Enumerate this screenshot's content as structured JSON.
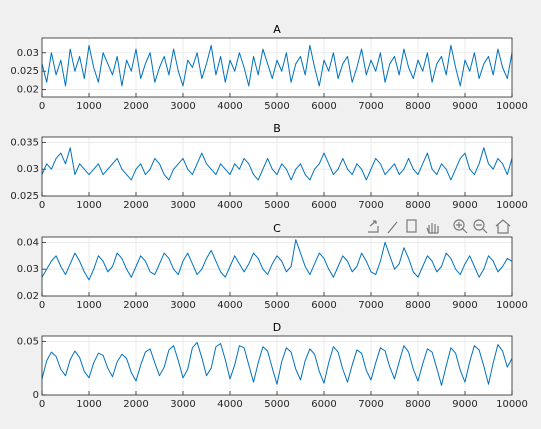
{
  "chart_data": [
    {
      "type": "line",
      "title": "A",
      "color": "#0072bd",
      "grid": true,
      "xlim": [
        0,
        10000
      ],
      "xticks": [
        0,
        1000,
        2000,
        3000,
        4000,
        5000,
        6000,
        7000,
        8000,
        9000,
        10000
      ],
      "ylim": [
        0.018,
        0.034
      ],
      "yticks": [
        0.02,
        0.025,
        0.03
      ],
      "x": [
        0,
        100,
        200,
        300,
        400,
        500,
        600,
        700,
        800,
        900,
        1000,
        1100,
        1200,
        1300,
        1400,
        1500,
        1600,
        1700,
        1800,
        1900,
        2000,
        2100,
        2200,
        2300,
        2400,
        2500,
        2600,
        2700,
        2800,
        2900,
        3000,
        3100,
        3200,
        3300,
        3400,
        3500,
        3600,
        3700,
        3800,
        3900,
        4000,
        4100,
        4200,
        4300,
        4400,
        4500,
        4600,
        4700,
        4800,
        4900,
        5000,
        5100,
        5200,
        5300,
        5400,
        5500,
        5600,
        5700,
        5800,
        5900,
        6000,
        6100,
        6200,
        6300,
        6400,
        6500,
        6600,
        6700,
        6800,
        6900,
        7000,
        7100,
        7200,
        7300,
        7400,
        7500,
        7600,
        7700,
        7800,
        7900,
        8000,
        8100,
        8200,
        8300,
        8400,
        8500,
        8600,
        8700,
        8800,
        8900,
        9000,
        9100,
        9200,
        9300,
        9400,
        9500,
        9600,
        9700,
        9800,
        9900,
        10000
      ],
      "values": [
        0.027,
        0.022,
        0.03,
        0.024,
        0.028,
        0.021,
        0.031,
        0.025,
        0.029,
        0.023,
        0.032,
        0.026,
        0.022,
        0.03,
        0.027,
        0.024,
        0.029,
        0.021,
        0.028,
        0.025,
        0.031,
        0.023,
        0.027,
        0.03,
        0.022,
        0.026,
        0.029,
        0.024,
        0.031,
        0.025,
        0.021,
        0.028,
        0.026,
        0.03,
        0.023,
        0.027,
        0.032,
        0.024,
        0.029,
        0.022,
        0.028,
        0.025,
        0.03,
        0.026,
        0.021,
        0.029,
        0.024,
        0.031,
        0.027,
        0.023,
        0.028,
        0.025,
        0.03,
        0.022,
        0.027,
        0.029,
        0.024,
        0.032,
        0.026,
        0.021,
        0.028,
        0.025,
        0.03,
        0.023,
        0.027,
        0.029,
        0.022,
        0.026,
        0.031,
        0.024,
        0.028,
        0.025,
        0.03,
        0.022,
        0.027,
        0.029,
        0.024,
        0.031,
        0.026,
        0.023,
        0.028,
        0.025,
        0.03,
        0.022,
        0.027,
        0.029,
        0.024,
        0.032,
        0.026,
        0.021,
        0.028,
        0.025,
        0.03,
        0.023,
        0.027,
        0.029,
        0.024,
        0.031,
        0.026,
        0.023,
        0.03
      ]
    },
    {
      "type": "line",
      "title": "B",
      "color": "#0072bd",
      "grid": true,
      "xlim": [
        0,
        10000
      ],
      "xticks": [
        0,
        1000,
        2000,
        3000,
        4000,
        5000,
        6000,
        7000,
        8000,
        9000,
        10000
      ],
      "ylim": [
        0.025,
        0.036
      ],
      "yticks": [
        0.025,
        0.03,
        0.035
      ],
      "x": [
        0,
        100,
        200,
        300,
        400,
        500,
        600,
        700,
        800,
        900,
        1000,
        1100,
        1200,
        1300,
        1400,
        1500,
        1600,
        1700,
        1800,
        1900,
        2000,
        2100,
        2200,
        2300,
        2400,
        2500,
        2600,
        2700,
        2800,
        2900,
        3000,
        3100,
        3200,
        3300,
        3400,
        3500,
        3600,
        3700,
        3800,
        3900,
        4000,
        4100,
        4200,
        4300,
        4400,
        4500,
        4600,
        4700,
        4800,
        4900,
        5000,
        5100,
        5200,
        5300,
        5400,
        5500,
        5600,
        5700,
        5800,
        5900,
        6000,
        6100,
        6200,
        6300,
        6400,
        6500,
        6600,
        6700,
        6800,
        6900,
        7000,
        7100,
        7200,
        7300,
        7400,
        7500,
        7600,
        7700,
        7800,
        7900,
        8000,
        8100,
        8200,
        8300,
        8400,
        8500,
        8600,
        8700,
        8800,
        8900,
        9000,
        9100,
        9200,
        9300,
        9400,
        9500,
        9600,
        9700,
        9800,
        9900,
        10000
      ],
      "values": [
        0.029,
        0.031,
        0.03,
        0.032,
        0.033,
        0.031,
        0.034,
        0.029,
        0.031,
        0.03,
        0.029,
        0.03,
        0.031,
        0.029,
        0.03,
        0.031,
        0.032,
        0.03,
        0.029,
        0.028,
        0.03,
        0.031,
        0.029,
        0.03,
        0.032,
        0.031,
        0.029,
        0.028,
        0.03,
        0.031,
        0.032,
        0.03,
        0.029,
        0.031,
        0.033,
        0.031,
        0.03,
        0.029,
        0.031,
        0.03,
        0.029,
        0.031,
        0.03,
        0.032,
        0.031,
        0.029,
        0.028,
        0.03,
        0.032,
        0.03,
        0.029,
        0.031,
        0.03,
        0.028,
        0.03,
        0.031,
        0.029,
        0.028,
        0.03,
        0.031,
        0.033,
        0.031,
        0.029,
        0.03,
        0.032,
        0.03,
        0.029,
        0.031,
        0.03,
        0.028,
        0.03,
        0.032,
        0.031,
        0.029,
        0.03,
        0.031,
        0.029,
        0.03,
        0.032,
        0.03,
        0.029,
        0.031,
        0.033,
        0.03,
        0.029,
        0.031,
        0.03,
        0.028,
        0.03,
        0.032,
        0.033,
        0.03,
        0.029,
        0.031,
        0.034,
        0.031,
        0.03,
        0.032,
        0.031,
        0.029,
        0.032
      ]
    },
    {
      "type": "line",
      "title": "C",
      "color": "#0072bd",
      "grid": true,
      "xlim": [
        0,
        10000
      ],
      "xticks": [
        0,
        1000,
        2000,
        3000,
        4000,
        5000,
        6000,
        7000,
        8000,
        9000,
        10000
      ],
      "ylim": [
        0.02,
        0.042
      ],
      "yticks": [
        0.02,
        0.03,
        0.04
      ],
      "x": [
        0,
        100,
        200,
        300,
        400,
        500,
        600,
        700,
        800,
        900,
        1000,
        1100,
        1200,
        1300,
        1400,
        1500,
        1600,
        1700,
        1800,
        1900,
        2000,
        2100,
        2200,
        2300,
        2400,
        2500,
        2600,
        2700,
        2800,
        2900,
        3000,
        3100,
        3200,
        3300,
        3400,
        3500,
        3600,
        3700,
        3800,
        3900,
        4000,
        4100,
        4200,
        4300,
        4400,
        4500,
        4600,
        4700,
        4800,
        4900,
        5000,
        5100,
        5200,
        5300,
        5400,
        5500,
        5600,
        5700,
        5800,
        5900,
        6000,
        6100,
        6200,
        6300,
        6400,
        6500,
        6600,
        6700,
        6800,
        6900,
        7000,
        7100,
        7200,
        7300,
        7400,
        7500,
        7600,
        7700,
        7800,
        7900,
        8000,
        8100,
        8200,
        8300,
        8400,
        8500,
        8600,
        8700,
        8800,
        8900,
        9000,
        9100,
        9200,
        9300,
        9400,
        9500,
        9600,
        9700,
        9800,
        9900,
        10000
      ],
      "values": [
        0.027,
        0.03,
        0.033,
        0.035,
        0.031,
        0.028,
        0.032,
        0.036,
        0.033,
        0.029,
        0.026,
        0.03,
        0.035,
        0.033,
        0.029,
        0.031,
        0.036,
        0.034,
        0.03,
        0.027,
        0.031,
        0.035,
        0.033,
        0.029,
        0.028,
        0.032,
        0.036,
        0.034,
        0.03,
        0.028,
        0.033,
        0.036,
        0.032,
        0.028,
        0.03,
        0.034,
        0.037,
        0.033,
        0.029,
        0.027,
        0.031,
        0.035,
        0.032,
        0.029,
        0.032,
        0.036,
        0.034,
        0.03,
        0.028,
        0.032,
        0.035,
        0.033,
        0.029,
        0.031,
        0.041,
        0.036,
        0.031,
        0.028,
        0.032,
        0.036,
        0.034,
        0.03,
        0.027,
        0.031,
        0.035,
        0.033,
        0.029,
        0.031,
        0.036,
        0.033,
        0.029,
        0.028,
        0.033,
        0.04,
        0.035,
        0.03,
        0.032,
        0.038,
        0.034,
        0.029,
        0.027,
        0.031,
        0.035,
        0.033,
        0.029,
        0.031,
        0.036,
        0.034,
        0.03,
        0.028,
        0.032,
        0.035,
        0.031,
        0.027,
        0.03,
        0.035,
        0.033,
        0.029,
        0.031,
        0.034,
        0.033
      ]
    },
    {
      "type": "line",
      "title": "D",
      "color": "#0072bd",
      "grid": true,
      "xlim": [
        0,
        10000
      ],
      "xticks": [
        0,
        1000,
        2000,
        3000,
        4000,
        5000,
        6000,
        7000,
        8000,
        9000,
        10000
      ],
      "ylim": [
        0,
        0.055
      ],
      "yticks": [
        0,
        0.05
      ],
      "x": [
        0,
        100,
        200,
        300,
        400,
        500,
        600,
        700,
        800,
        900,
        1000,
        1100,
        1200,
        1300,
        1400,
        1500,
        1600,
        1700,
        1800,
        1900,
        2000,
        2100,
        2200,
        2300,
        2400,
        2500,
        2600,
        2700,
        2800,
        2900,
        3000,
        3100,
        3200,
        3300,
        3400,
        3500,
        3600,
        3700,
        3800,
        3900,
        4000,
        4100,
        4200,
        4300,
        4400,
        4500,
        4600,
        4700,
        4800,
        4900,
        5000,
        5100,
        5200,
        5300,
        5400,
        5500,
        5600,
        5700,
        5800,
        5900,
        6000,
        6100,
        6200,
        6300,
        6400,
        6500,
        6600,
        6700,
        6800,
        6900,
        7000,
        7100,
        7200,
        7300,
        7400,
        7500,
        7600,
        7700,
        7800,
        7900,
        8000,
        8100,
        8200,
        8300,
        8400,
        8500,
        8600,
        8700,
        8800,
        8900,
        9000,
        9100,
        9200,
        9300,
        9400,
        9500,
        9600,
        9700,
        9800,
        9900,
        10000
      ],
      "values": [
        0.015,
        0.032,
        0.04,
        0.036,
        0.024,
        0.018,
        0.033,
        0.041,
        0.035,
        0.022,
        0.016,
        0.03,
        0.039,
        0.037,
        0.025,
        0.017,
        0.031,
        0.038,
        0.034,
        0.021,
        0.013,
        0.028,
        0.04,
        0.043,
        0.03,
        0.018,
        0.026,
        0.042,
        0.046,
        0.032,
        0.016,
        0.024,
        0.044,
        0.049,
        0.035,
        0.018,
        0.025,
        0.045,
        0.048,
        0.033,
        0.015,
        0.028,
        0.046,
        0.044,
        0.028,
        0.012,
        0.03,
        0.045,
        0.041,
        0.025,
        0.01,
        0.031,
        0.044,
        0.04,
        0.024,
        0.014,
        0.032,
        0.043,
        0.038,
        0.022,
        0.011,
        0.03,
        0.045,
        0.04,
        0.024,
        0.012,
        0.028,
        0.042,
        0.039,
        0.023,
        0.014,
        0.03,
        0.044,
        0.041,
        0.026,
        0.015,
        0.031,
        0.046,
        0.04,
        0.024,
        0.013,
        0.029,
        0.043,
        0.04,
        0.025,
        0.009,
        0.027,
        0.044,
        0.039,
        0.023,
        0.012,
        0.031,
        0.046,
        0.042,
        0.027,
        0.01,
        0.03,
        0.047,
        0.041,
        0.026,
        0.034
      ]
    }
  ]
}
